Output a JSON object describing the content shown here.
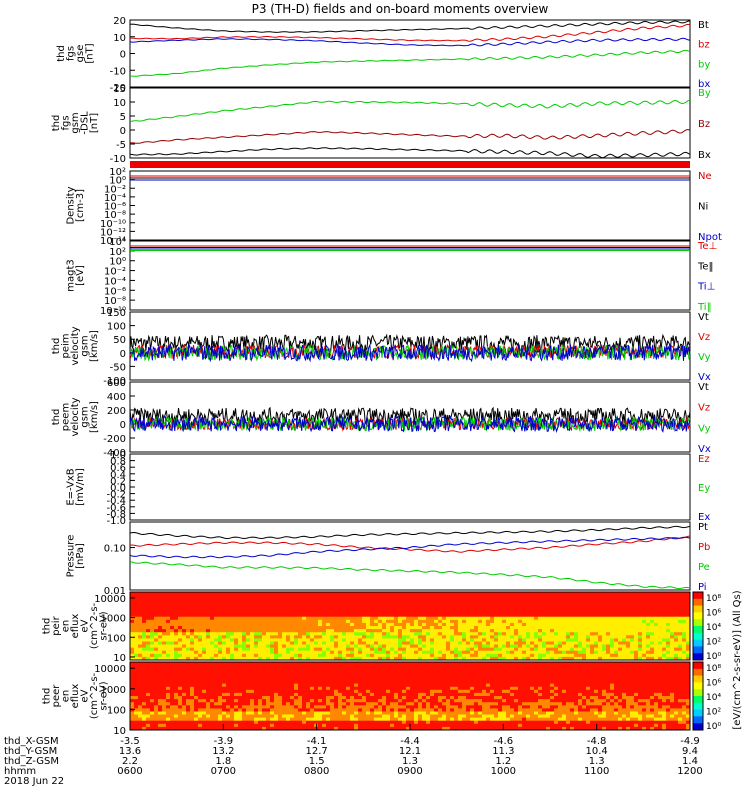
{
  "title": "P3 (TH-D) fields and on-board moments overview",
  "chart_data": [
    {
      "type": "line",
      "ylabel": [
        "thd",
        "fgs",
        "gse",
        "[nT]"
      ],
      "ylim": [
        -20,
        20
      ],
      "yticks": [
        "20",
        "10",
        "0",
        "-10",
        "-20"
      ],
      "series": [
        {
          "name": "Bt",
          "color": "#000000",
          "y": [
            17.5,
            15.2,
            13.4,
            12.8,
            12.9,
            13.6,
            14.2,
            14.8,
            15.6,
            16.5,
            17.6,
            18.5,
            18.9
          ]
        },
        {
          "name": "bz",
          "color": "#dd0000",
          "y": [
            9.0,
            8.8,
            9.8,
            10.0,
            9.5,
            8.7,
            7.9,
            7.7,
            8.5,
            10.2,
            12.6,
            15.2,
            16.8
          ]
        },
        {
          "name": "by",
          "color": "#00cc00",
          "y": [
            -13.6,
            -12.0,
            -8.8,
            -6.8,
            -5.1,
            -4.5,
            -4.0,
            -3.4,
            -2.9,
            -2.1,
            -0.9,
            0.5,
            1.4
          ]
        },
        {
          "name": "bx",
          "color": "#0000cc",
          "y": [
            6.9,
            7.9,
            8.7,
            8.4,
            7.6,
            6.2,
            5.1,
            4.7,
            5.6,
            6.9,
            7.9,
            8.3,
            8.5
          ]
        }
      ]
    },
    {
      "type": "line",
      "ylabel": [
        "thd",
        "fgs",
        "gsm",
        "-DSL",
        "[nT]"
      ],
      "ylim": [
        -12,
        15
      ],
      "yticks": [
        "15",
        "10",
        "5",
        "0",
        "-5",
        "-10"
      ],
      "series": [
        {
          "name": "By",
          "color": "#00cc00",
          "y": [
            2.0,
            4.0,
            6.2,
            7.9,
            9.7,
            9.6,
            9.4,
            9.0,
            8.4,
            7.9,
            9.0,
            9.3,
            9.7
          ]
        },
        {
          "name": "Bz",
          "color": "#990000",
          "y": [
            -6.4,
            -5.0,
            -4.0,
            -3.0,
            -1.9,
            -2.4,
            -3.0,
            -3.6,
            -3.4,
            -4.2,
            -3.4,
            -2.4,
            -1.6
          ]
        },
        {
          "name": "Bx",
          "color": "#000000",
          "y": [
            -10.7,
            -10.5,
            -9.5,
            -8.6,
            -8.2,
            -8.4,
            -8.8,
            -9.2,
            -9.6,
            -10.2,
            -11.3,
            -10.9,
            -10.4
          ]
        }
      ]
    },
    {
      "type": "line",
      "ylabel": [
        "Density",
        "[cm-3]"
      ],
      "log": true,
      "yticks": [
        "10²",
        "10⁰",
        "10⁻²",
        "10⁻⁴",
        "10⁻⁶",
        "10⁻⁸",
        "10⁻¹⁰",
        "10⁻¹²",
        "10⁻¹⁴"
      ],
      "series": [
        {
          "name": "Ne",
          "color": "#dd0000"
        },
        {
          "name": "Ni",
          "color": "#000000"
        },
        {
          "name": "Npot",
          "color": "#0000cc"
        }
      ]
    },
    {
      "type": "line",
      "ylabel": [
        "magt3",
        "[eV]"
      ],
      "log": true,
      "yticks": [
        "10⁴",
        "10²",
        "10⁰",
        "10⁻²",
        "10⁻⁴",
        "10⁻⁶",
        "10⁻⁸",
        "10⁻¹⁰"
      ],
      "series": [
        {
          "name": "Te⊥",
          "color": "#dd0000"
        },
        {
          "name": "Te‖",
          "color": "#000000"
        },
        {
          "name": "Ti⊥",
          "color": "#0000cc"
        },
        {
          "name": "Ti‖",
          "color": "#00cc00"
        }
      ]
    },
    {
      "type": "line",
      "ylabel": [
        "thd",
        "peim",
        "velocity",
        "gsm",
        "[km/s]"
      ],
      "ylim": [
        -100,
        150
      ],
      "yticks": [
        "150",
        "100",
        "50",
        "0",
        "-50",
        "-100"
      ],
      "series": [
        {
          "name": "Vt",
          "color": "#000000",
          "mean": 35,
          "amp": 30
        },
        {
          "name": "Vz",
          "color": "#dd0000",
          "mean": 5,
          "amp": 20
        },
        {
          "name": "Vy",
          "color": "#00cc00",
          "mean": 0,
          "amp": 22
        },
        {
          "name": "Vx",
          "color": "#0000cc",
          "mean": 0,
          "amp": 25
        }
      ]
    },
    {
      "type": "line",
      "ylabel": [
        "thd",
        "peem",
        "velocity",
        "gsm",
        "[km/s]"
      ],
      "ylim": [
        -400,
        600
      ],
      "yticks": [
        "600",
        "400",
        "200",
        "0",
        "-200",
        "-400"
      ],
      "series": [
        {
          "name": "Vt",
          "color": "#000000",
          "mean": 120,
          "amp": 110
        },
        {
          "name": "Vz",
          "color": "#dd0000",
          "mean": 0,
          "amp": 70
        },
        {
          "name": "Vy",
          "color": "#00cc00",
          "mean": 0,
          "amp": 80
        },
        {
          "name": "Vx",
          "color": "#0000cc",
          "mean": 0,
          "amp": 90
        }
      ]
    },
    {
      "type": "line",
      "ylabel": [
        "E=-VxB",
        "[mV/m]"
      ],
      "ylim": [
        -1,
        1
      ],
      "yticks": [
        "1.0",
        "0.8",
        "0.6",
        "0.4",
        "0.2",
        "0.0",
        "-0.2",
        "-0.4",
        "-0.6",
        "-0.8",
        "-1.0"
      ],
      "series": [
        {
          "name": "Ez",
          "color": "#dd0000"
        },
        {
          "name": "Ey",
          "color": "#00cc00"
        },
        {
          "name": "Ex",
          "color": "#0000cc"
        }
      ]
    },
    {
      "type": "line",
      "ylabel": [
        "Pressure",
        "[nPa]"
      ],
      "log": true,
      "ylim": [
        0.01,
        0.4
      ],
      "yticks": [
        "0.10",
        "0.01"
      ],
      "series": [
        {
          "name": "Pt",
          "color": "#000000",
          "y": [
            0.22,
            0.19,
            0.17,
            0.17,
            0.18,
            0.2,
            0.21,
            0.22,
            0.23,
            0.24,
            0.26,
            0.29,
            0.31
          ]
        },
        {
          "name": "Pb",
          "color": "#dd0000",
          "y": [
            0.11,
            0.12,
            0.13,
            0.13,
            0.12,
            0.1,
            0.09,
            0.08,
            0.09,
            0.1,
            0.12,
            0.14,
            0.18
          ]
        },
        {
          "name": "Pe",
          "color": "#00cc00",
          "y": [
            0.045,
            0.04,
            0.034,
            0.034,
            0.033,
            0.03,
            0.028,
            0.026,
            0.023,
            0.02,
            0.015,
            0.012,
            0.011
          ]
        },
        {
          "name": "Pi",
          "color": "#0000cc",
          "y": [
            0.065,
            0.06,
            0.06,
            0.065,
            0.08,
            0.09,
            0.1,
            0.12,
            0.13,
            0.14,
            0.15,
            0.16,
            0.17
          ]
        }
      ]
    },
    {
      "type": "heatmap",
      "ylabel": [
        "thd",
        "peir",
        "en",
        "eflux",
        "eV",
        "(cm^2-s-",
        "sr-eV)"
      ],
      "log": true,
      "ylim": [
        7,
        20000
      ],
      "yticks": [
        "10000",
        "1000",
        "100",
        "10"
      ]
    },
    {
      "type": "heatmap",
      "ylabel": [
        "thd",
        "peer",
        "en",
        "eflux",
        "eV",
        "(cm^2-s-",
        "sr-eV)"
      ],
      "log": true,
      "ylim": [
        10,
        20000
      ],
      "yticks": [
        "10000",
        "1000",
        "100",
        "10"
      ]
    }
  ],
  "colorbar": {
    "label": "[eV/(cm^2-s-sr-eV)] (All Qs)",
    "ticks": [
      "10⁸",
      "10⁶",
      "10⁴",
      "10²",
      "10⁰"
    ]
  },
  "xaxis": {
    "rows": [
      {
        "label": "thd_X-GSM",
        "values": [
          "-3.5",
          "-3.9",
          "-4.1",
          "-4.4",
          "-4.6",
          "-4.8",
          "-4.9"
        ]
      },
      {
        "label": "thd_Y-GSM",
        "values": [
          "13.6",
          "13.2",
          "12.7",
          "12.1",
          "11.3",
          "10.4",
          "9.4"
        ]
      },
      {
        "label": "thd_Z-GSM",
        "values": [
          "2.2",
          "1.8",
          "1.5",
          "1.3",
          "1.2",
          "1.3",
          "1.4"
        ]
      },
      {
        "label": "hhmm",
        "values": [
          "0600",
          "0700",
          "0800",
          "0900",
          "1000",
          "1100",
          "1200"
        ]
      }
    ],
    "date": "2018 Jun 22"
  }
}
